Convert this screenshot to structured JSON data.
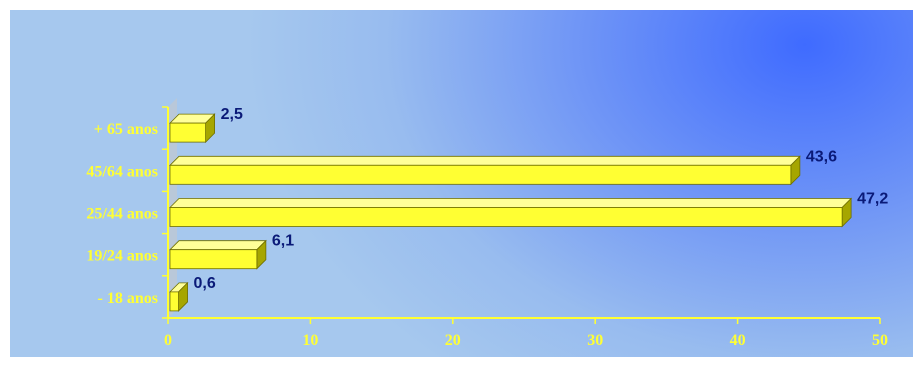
{
  "chart_data": {
    "type": "bar",
    "orientation": "horizontal",
    "categories": [
      "- 18 anos",
      "19/24 anos",
      "25/44 anos",
      "45/64 anos",
      "+ 65 anos"
    ],
    "values": [
      0.6,
      6.1,
      47.2,
      43.6,
      2.5
    ],
    "data_labels": [
      "0,6",
      "6,1",
      "47,2",
      "43,6",
      "2,5"
    ],
    "title": "",
    "xlabel": "",
    "ylabel": "",
    "xlim": [
      0,
      50
    ],
    "ticks": [
      0,
      10,
      20,
      30,
      40,
      50
    ],
    "tick_labels": [
      "0",
      "10",
      "20",
      "30",
      "40",
      "50"
    ],
    "grid": false,
    "legend": "none",
    "colors": {
      "bar_front": "#ffff33",
      "bar_top": "#ffff99",
      "bar_side": "#a6a600",
      "axis": "#ffff33",
      "category_labels": "#ffff33",
      "data_labels": "#0a1a78"
    }
  }
}
